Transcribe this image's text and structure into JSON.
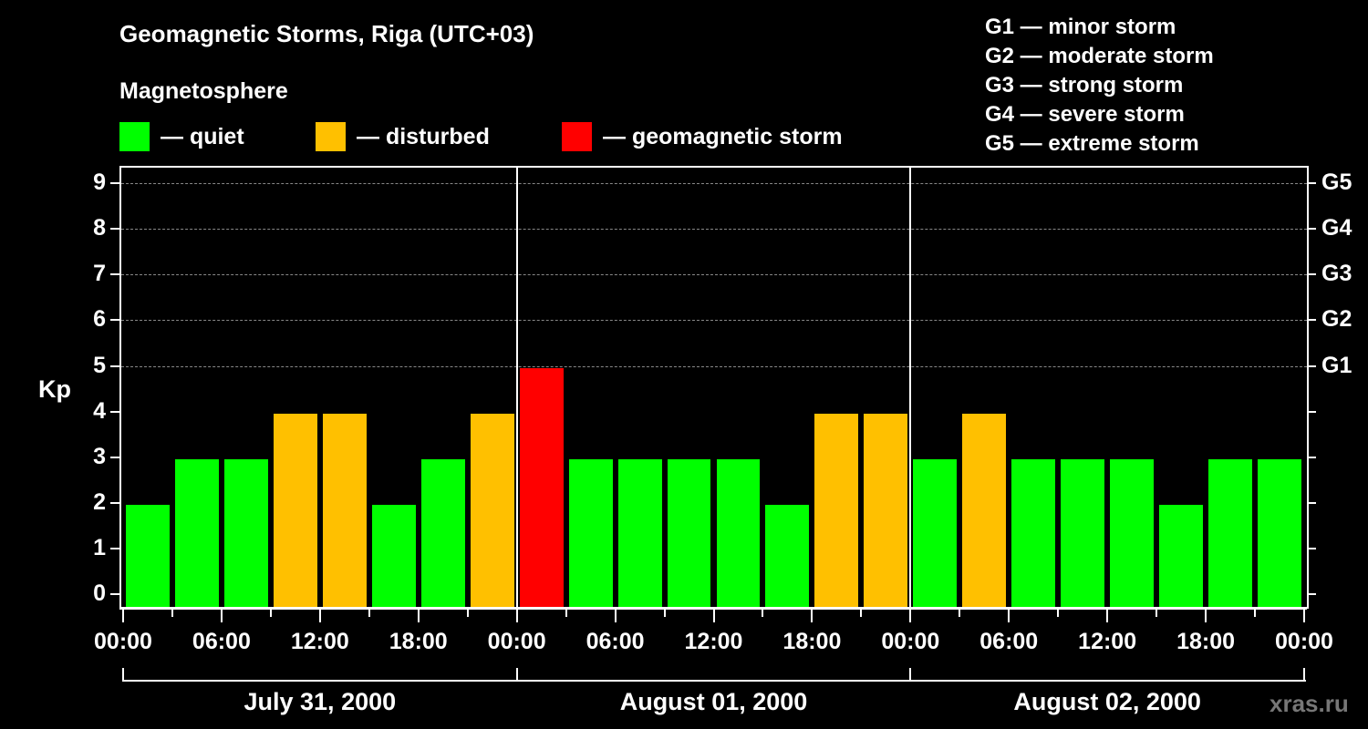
{
  "title": "Geomagnetic Storms, Riga (UTC+03)",
  "subtitle": "Magnetosphere",
  "legend": [
    {
      "label": "— quiet",
      "color": "#00ff00"
    },
    {
      "label": "— disturbed",
      "color": "#ffc000"
    },
    {
      "label": "— geomagnetic storm",
      "color": "#ff0000"
    }
  ],
  "g_legend": [
    "G1 — minor storm",
    "G2 — moderate storm",
    "G3 — strong storm",
    "G4 — severe storm",
    "G5 — extreme storm"
  ],
  "y_axis_label": "Kp",
  "y_ticks": [
    "0",
    "1",
    "2",
    "3",
    "4",
    "5",
    "6",
    "7",
    "8",
    "9"
  ],
  "g_ticks": [
    "G1",
    "G2",
    "G3",
    "G4",
    "G5"
  ],
  "x_ticks": [
    "00:00",
    "06:00",
    "12:00",
    "18:00",
    "00:00",
    "06:00",
    "12:00",
    "18:00",
    "00:00",
    "06:00",
    "12:00",
    "18:00",
    "00:00"
  ],
  "days": [
    "July 31, 2000",
    "August 01, 2000",
    "August 02, 2000"
  ],
  "watermark": "xras.ru",
  "chart_data": {
    "type": "bar",
    "title": "Geomagnetic Storms, Riga (UTC+03)",
    "xlabel": "",
    "ylabel": "Kp",
    "ylim": [
      0,
      9
    ],
    "grid": "dashed horizontal at Kp 5-9",
    "legend": [
      "quiet",
      "disturbed",
      "geomagnetic storm"
    ],
    "categories": [
      "Jul 31 00:00",
      "Jul 31 03:00",
      "Jul 31 06:00",
      "Jul 31 09:00",
      "Jul 31 12:00",
      "Jul 31 15:00",
      "Jul 31 18:00",
      "Jul 31 21:00",
      "Aug 01 00:00",
      "Aug 01 03:00",
      "Aug 01 06:00",
      "Aug 01 09:00",
      "Aug 01 12:00",
      "Aug 01 15:00",
      "Aug 01 18:00",
      "Aug 01 21:00",
      "Aug 02 00:00",
      "Aug 02 03:00",
      "Aug 02 06:00",
      "Aug 02 09:00",
      "Aug 02 12:00",
      "Aug 02 15:00",
      "Aug 02 18:00",
      "Aug 02 21:00"
    ],
    "values": [
      2,
      3,
      3,
      4,
      4,
      2,
      3,
      4,
      5,
      3,
      3,
      3,
      3,
      2,
      4,
      4,
      3,
      4,
      3,
      3,
      3,
      2,
      3,
      3
    ],
    "colors": [
      "quiet",
      "quiet",
      "quiet",
      "disturbed",
      "disturbed",
      "quiet",
      "quiet",
      "disturbed",
      "storm",
      "quiet",
      "quiet",
      "quiet",
      "quiet",
      "quiet",
      "disturbed",
      "disturbed",
      "quiet",
      "disturbed",
      "quiet",
      "quiet",
      "quiet",
      "quiet",
      "quiet",
      "quiet"
    ],
    "right_axis": {
      "5": "G1",
      "6": "G2",
      "7": "G3",
      "8": "G4",
      "9": "G5"
    }
  }
}
